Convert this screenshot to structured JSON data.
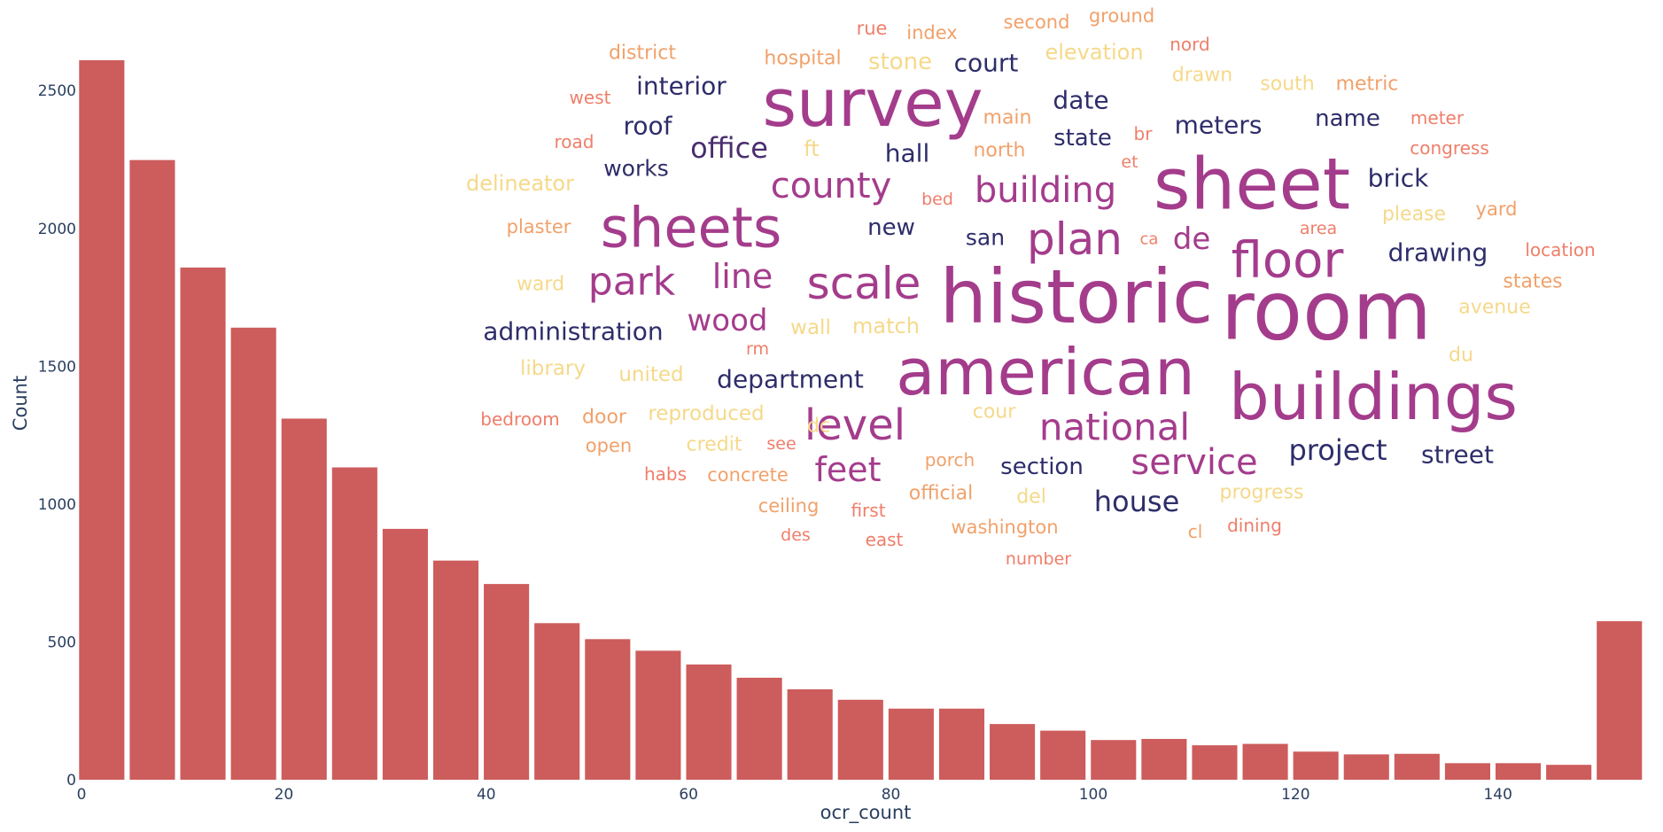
{
  "chart_data": {
    "type": "bar",
    "xlabel": "ocr_count",
    "ylabel": "Count",
    "xlim": [
      0,
      155
    ],
    "ylim": [
      0,
      2700
    ],
    "x_ticks": [
      "0",
      "20",
      "40",
      "60",
      "80",
      "100",
      "120",
      "140"
    ],
    "x_tick_values": [
      0,
      20,
      40,
      60,
      80,
      100,
      120,
      140
    ],
    "y_ticks": [
      "0",
      "500",
      "1000",
      "1500",
      "2000",
      "2500"
    ],
    "y_tick_values": [
      0,
      500,
      1000,
      1500,
      2000,
      2500
    ],
    "grid": false,
    "bar_color": "#cd5c5c",
    "bin_width": 5,
    "x": [
      2,
      7,
      12,
      17,
      22,
      27,
      32,
      37,
      42,
      47,
      52,
      57,
      62,
      67,
      72,
      77,
      82,
      87,
      92,
      97,
      102,
      107,
      112,
      117,
      122,
      127,
      132,
      137,
      142,
      147,
      152
    ],
    "values": [
      2610,
      2248,
      1858,
      1640,
      1310,
      1133,
      910,
      795,
      710,
      568,
      510,
      468,
      418,
      370,
      328,
      290,
      258,
      258,
      202,
      178,
      144,
      148,
      125,
      130,
      102,
      92,
      94,
      60,
      60,
      54,
      575
    ]
  },
  "word_cloud": {
    "words": [
      {
        "text": "survey",
        "color": "#a43c8c",
        "size": 74
      },
      {
        "text": "sheet",
        "color": "#a43c8c",
        "size": 80
      },
      {
        "text": "historic",
        "color": "#a43c8c",
        "size": 84
      },
      {
        "text": "room",
        "color": "#a43c8c",
        "size": 92
      },
      {
        "text": "american",
        "color": "#a43c8c",
        "size": 72
      },
      {
        "text": "buildings",
        "color": "#a43c8c",
        "size": 72
      },
      {
        "text": "sheets",
        "color": "#a43c8c",
        "size": 62
      },
      {
        "text": "floor",
        "color": "#a43c8c",
        "size": 56
      },
      {
        "text": "plan",
        "color": "#a43c8c",
        "size": 50
      },
      {
        "text": "scale",
        "color": "#a43c8c",
        "size": 50
      },
      {
        "text": "level",
        "color": "#a43c8c",
        "size": 48
      },
      {
        "text": "park",
        "color": "#a43c8c",
        "size": 44
      },
      {
        "text": "national",
        "color": "#a43c8c",
        "size": 42
      },
      {
        "text": "building",
        "color": "#a43c8c",
        "size": 40
      },
      {
        "text": "county",
        "color": "#a43c8c",
        "size": 40
      },
      {
        "text": "service",
        "color": "#a43c8c",
        "size": 40
      },
      {
        "text": "line",
        "color": "#a43c8c",
        "size": 38
      },
      {
        "text": "feet",
        "color": "#a43c8c",
        "size": 38
      },
      {
        "text": "wood",
        "color": "#a43c8c",
        "size": 34
      },
      {
        "text": "de",
        "color": "#a43c8c",
        "size": 34
      },
      {
        "text": "office",
        "color": "#4a2d6f",
        "size": 32
      },
      {
        "text": "project",
        "color": "#2e2d6a",
        "size": 32
      },
      {
        "text": "house",
        "color": "#2e2d6a",
        "size": 32
      },
      {
        "text": "court",
        "color": "#2e2d6a",
        "size": 28
      },
      {
        "text": "interior",
        "color": "#2e2d6a",
        "size": 28
      },
      {
        "text": "department",
        "color": "#2e2d6a",
        "size": 28
      },
      {
        "text": "administration",
        "color": "#2e2d6a",
        "size": 28
      },
      {
        "text": "drawing",
        "color": "#2e2d6a",
        "size": 28
      },
      {
        "text": "meters",
        "color": "#2e2d6a",
        "size": 28
      },
      {
        "text": "brick",
        "color": "#2e2d6a",
        "size": 28
      },
      {
        "text": "street",
        "color": "#2e2d6a",
        "size": 28
      },
      {
        "text": "date",
        "color": "#2e2d6a",
        "size": 28
      },
      {
        "text": "hall",
        "color": "#2e2d6a",
        "size": 28
      },
      {
        "text": "roof",
        "color": "#2e2d6a",
        "size": 28
      },
      {
        "text": "state",
        "color": "#2e2d6a",
        "size": 26
      },
      {
        "text": "name",
        "color": "#2e2d6a",
        "size": 26
      },
      {
        "text": "section",
        "color": "#2e2d6a",
        "size": 26
      },
      {
        "text": "new",
        "color": "#2e2d6a",
        "size": 26
      },
      {
        "text": "works",
        "color": "#2e2d6a",
        "size": 25
      },
      {
        "text": "san",
        "color": "#2e2d6a",
        "size": 25
      },
      {
        "text": "district",
        "color": "#f1a16a",
        "size": 22
      },
      {
        "text": "hospital",
        "color": "#f1a16a",
        "size": 22
      },
      {
        "text": "stone",
        "color": "#f5d98a",
        "size": 26
      },
      {
        "text": "elevation",
        "color": "#f5d98a",
        "size": 24
      },
      {
        "text": "second",
        "color": "#f1a16a",
        "size": 21
      },
      {
        "text": "ground",
        "color": "#f1a16a",
        "size": 21
      },
      {
        "text": "rue",
        "color": "#ef7e6a",
        "size": 21
      },
      {
        "text": "index",
        "color": "#f1a16a",
        "size": 21
      },
      {
        "text": "nord",
        "color": "#ef7e6a",
        "size": 20
      },
      {
        "text": "drawn",
        "color": "#f5d98a",
        "size": 22
      },
      {
        "text": "south",
        "color": "#f5d98a",
        "size": 22
      },
      {
        "text": "metric",
        "color": "#f1a16a",
        "size": 22
      },
      {
        "text": "west",
        "color": "#ef7e6a",
        "size": 20
      },
      {
        "text": "main",
        "color": "#f1a16a",
        "size": 22
      },
      {
        "text": "meter",
        "color": "#ef7e6a",
        "size": 20
      },
      {
        "text": "road",
        "color": "#ef7e6a",
        "size": 20
      },
      {
        "text": "ft",
        "color": "#f5d98a",
        "size": 24
      },
      {
        "text": "north",
        "color": "#f1a16a",
        "size": 22
      },
      {
        "text": "br",
        "color": "#ef7e6a",
        "size": 20
      },
      {
        "text": "congress",
        "color": "#ef7e6a",
        "size": 20
      },
      {
        "text": "et",
        "color": "#ef7e6a",
        "size": 19
      },
      {
        "text": "delineator",
        "color": "#f5d98a",
        "size": 24
      },
      {
        "text": "bed",
        "color": "#ef7e6a",
        "size": 19
      },
      {
        "text": "yard",
        "color": "#f1a16a",
        "size": 21
      },
      {
        "text": "plaster",
        "color": "#f1a16a",
        "size": 21
      },
      {
        "text": "please",
        "color": "#f5d98a",
        "size": 22
      },
      {
        "text": "area",
        "color": "#ef7e6a",
        "size": 19
      },
      {
        "text": "ca",
        "color": "#ef7e6a",
        "size": 18
      },
      {
        "text": "location",
        "color": "#ef7e6a",
        "size": 20
      },
      {
        "text": "ward",
        "color": "#f5d98a",
        "size": 22
      },
      {
        "text": "states",
        "color": "#f1a16a",
        "size": 22
      },
      {
        "text": "avenue",
        "color": "#f5d98a",
        "size": 22
      },
      {
        "text": "wall",
        "color": "#f5d98a",
        "size": 23
      },
      {
        "text": "match",
        "color": "#f5d98a",
        "size": 24
      },
      {
        "text": "rm",
        "color": "#ef7e6a",
        "size": 19
      },
      {
        "text": "library",
        "color": "#f5d98a",
        "size": 23
      },
      {
        "text": "united",
        "color": "#f5d98a",
        "size": 23
      },
      {
        "text": "du",
        "color": "#f5d98a",
        "size": 22
      },
      {
        "text": "bedroom",
        "color": "#ef7e6a",
        "size": 20
      },
      {
        "text": "door",
        "color": "#f1a16a",
        "size": 22
      },
      {
        "text": "reproduced",
        "color": "#f5d98a",
        "size": 23
      },
      {
        "text": "cour",
        "color": "#f5d98a",
        "size": 22
      },
      {
        "text": "dc",
        "color": "#f5d98a",
        "size": 22
      },
      {
        "text": "open",
        "color": "#f1a16a",
        "size": 21
      },
      {
        "text": "credit",
        "color": "#f5d98a",
        "size": 22
      },
      {
        "text": "see",
        "color": "#ef7e6a",
        "size": 19
      },
      {
        "text": "habs",
        "color": "#ef7e6a",
        "size": 20
      },
      {
        "text": "concrete",
        "color": "#f1a16a",
        "size": 21
      },
      {
        "text": "porch",
        "color": "#f1a16a",
        "size": 20
      },
      {
        "text": "ceiling",
        "color": "#f1a16a",
        "size": 21
      },
      {
        "text": "first",
        "color": "#ef7e6a",
        "size": 20
      },
      {
        "text": "official",
        "color": "#f1a16a",
        "size": 22
      },
      {
        "text": "del",
        "color": "#f5d98a",
        "size": 22
      },
      {
        "text": "progress",
        "color": "#f5d98a",
        "size": 22
      },
      {
        "text": "washington",
        "color": "#f1a16a",
        "size": 21
      },
      {
        "text": "dining",
        "color": "#ef7e6a",
        "size": 20
      },
      {
        "text": "des",
        "color": "#ef7e6a",
        "size": 19
      },
      {
        "text": "east",
        "color": "#ef7e6a",
        "size": 20
      },
      {
        "text": "cl",
        "color": "#f1a16a",
        "size": 20
      },
      {
        "text": "number",
        "color": "#ef7e6a",
        "size": 19
      }
    ]
  }
}
